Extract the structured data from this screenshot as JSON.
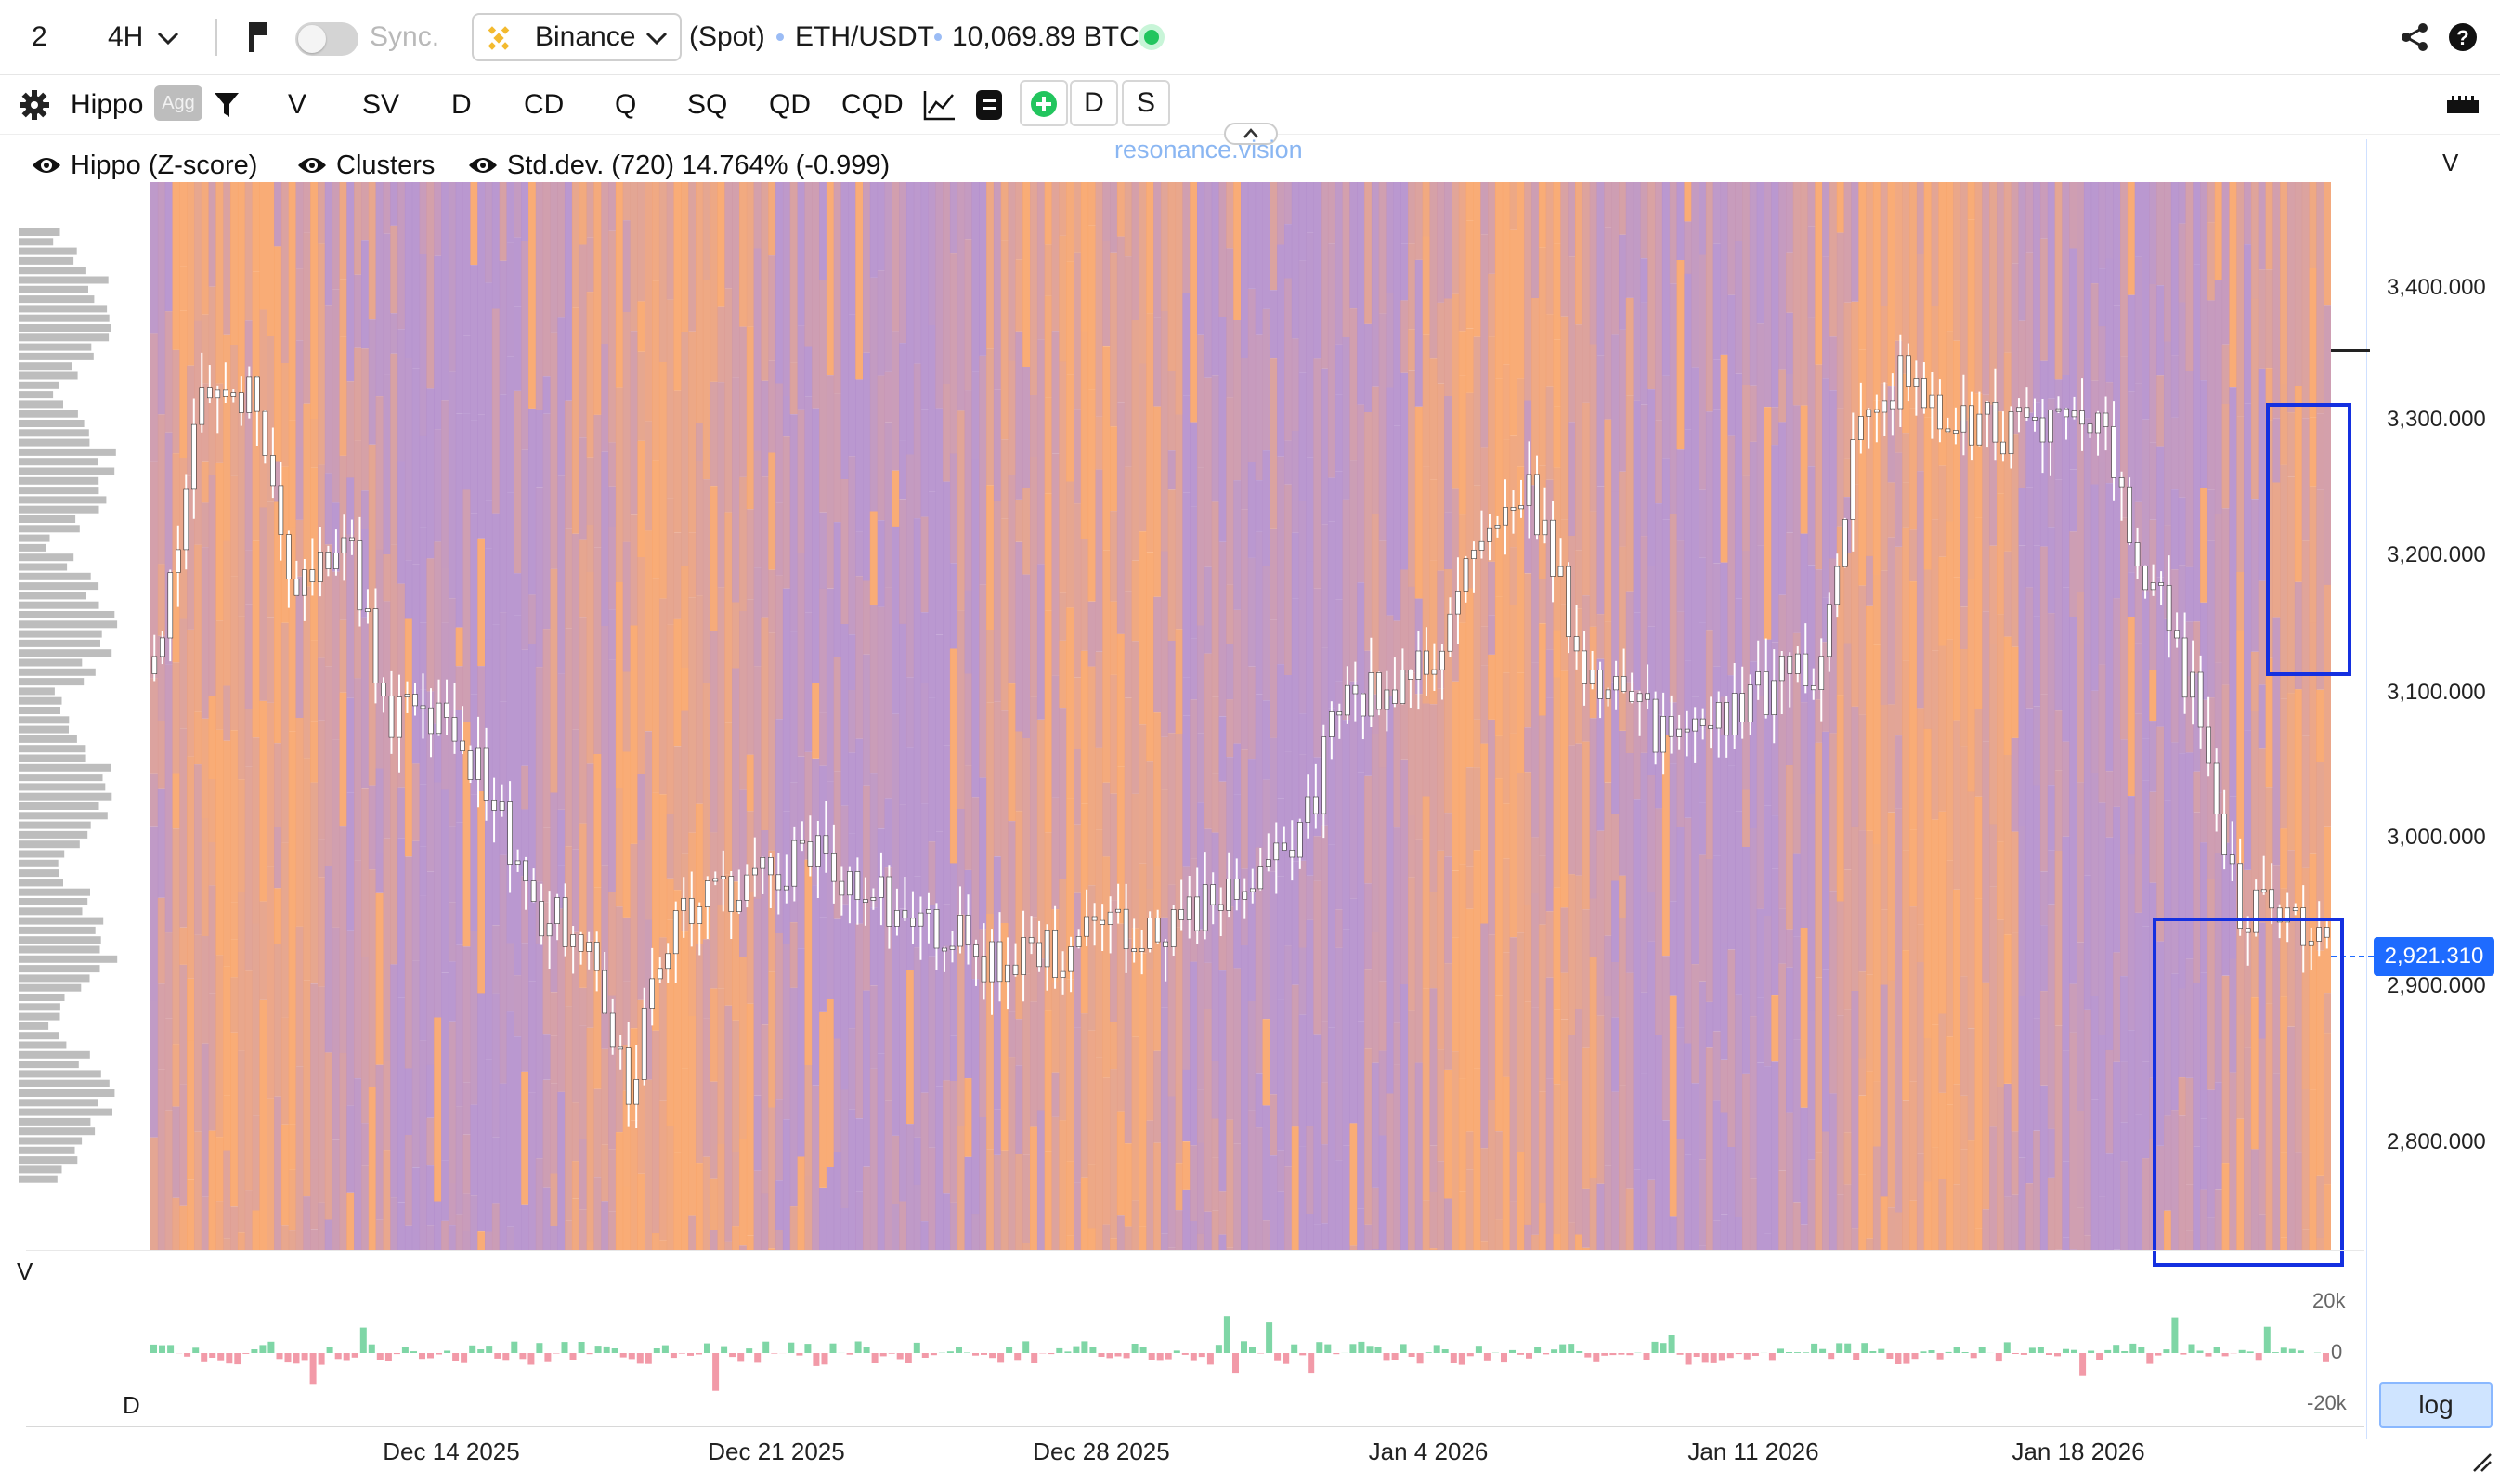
{
  "topbar": {
    "layout_count": "2",
    "interval": "4H",
    "sync_label": "Sync.",
    "exchange": "Binance",
    "market_type": "(Spot)",
    "symbol": "ETH/USDT",
    "volume_value": "10,069.89 BTC",
    "status_color": "#22c55e"
  },
  "toolbar": {
    "indicator": "Hippo",
    "agg_badge": "Agg",
    "items": [
      "V",
      "SV",
      "D",
      "CD",
      "Q",
      "SQ",
      "QD",
      "CQD"
    ],
    "btn_d": "D",
    "btn_s": "S"
  },
  "legend": {
    "item1": "Hippo (Z-score)",
    "item2": "Clusters",
    "item3": "Std.dev. (720) 14.764% (-0.999)"
  },
  "watermark": "resonance.vision",
  "panes": {
    "price_axis_label": "V",
    "volume_label": "V",
    "delta_label": "D",
    "log_button": "log"
  },
  "price_axis": {
    "ticks": [
      "3,400.000",
      "3,300.000",
      "3,200.000",
      "3,100.000",
      "3,000.000",
      "2,900.000",
      "2,800.000"
    ],
    "current_price": "2,921.310"
  },
  "volume_axis": {
    "ticks": [
      "20k",
      "0",
      "-20k"
    ]
  },
  "time_axis": {
    "ticks": [
      "Dec 14 2025",
      "Dec 21 2025",
      "Dec 28 2025",
      "Jan 4 2026",
      "Jan 11 2026",
      "Jan 18 2026"
    ]
  },
  "chart_data": {
    "type": "heatmap",
    "symbol": "ETH/USDT",
    "interval": "4H",
    "y_range": [
      2720,
      3480
    ],
    "current_price": 2921.31,
    "price_path": [
      {
        "t": "Dec 8 2025",
        "p": 3130
      },
      {
        "t": "Dec 9 2025",
        "p": 3320
      },
      {
        "t": "Dec 10 2025",
        "p": 3330
      },
      {
        "t": "Dec 11 2025",
        "p": 3180
      },
      {
        "t": "Dec 12 2025",
        "p": 3230
      },
      {
        "t": "Dec 13 2025",
        "p": 3100
      },
      {
        "t": "Dec 14 2025",
        "p": 3100
      },
      {
        "t": "Dec 15 2025",
        "p": 3050
      },
      {
        "t": "Dec 16 2025",
        "p": 2960
      },
      {
        "t": "Dec 17 2025",
        "p": 2950
      },
      {
        "t": "Dec 18 2025",
        "p": 2830
      },
      {
        "t": "Dec 19 2025",
        "p": 2960
      },
      {
        "t": "Dec 20 2025",
        "p": 2980
      },
      {
        "t": "Dec 21 2025",
        "p": 2980
      },
      {
        "t": "Dec 22 2025",
        "p": 3010
      },
      {
        "t": "Dec 23 2025",
        "p": 2970
      },
      {
        "t": "Dec 24 2025",
        "p": 2960
      },
      {
        "t": "Dec 25 2025",
        "p": 2940
      },
      {
        "t": "Dec 26 2025",
        "p": 2920
      },
      {
        "t": "Dec 27 2025",
        "p": 2930
      },
      {
        "t": "Dec 28 2025",
        "p": 2950
      },
      {
        "t": "Dec 29 2025",
        "p": 2940
      },
      {
        "t": "Dec 30 2025",
        "p": 2960
      },
      {
        "t": "Dec 31 2025",
        "p": 2980
      },
      {
        "t": "Jan 1 2026",
        "p": 3000
      },
      {
        "t": "Jan 2 2026",
        "p": 3100
      },
      {
        "t": "Jan 3 2026",
        "p": 3120
      },
      {
        "t": "Jan 4 2026",
        "p": 3140
      },
      {
        "t": "Jan 5 2026",
        "p": 3240
      },
      {
        "t": "Jan 6 2026",
        "p": 3260
      },
      {
        "t": "Jan 7 2026",
        "p": 3150
      },
      {
        "t": "Jan 8 2026",
        "p": 3100
      },
      {
        "t": "Jan 9 2026",
        "p": 3090
      },
      {
        "t": "Jan 10 2026",
        "p": 3100
      },
      {
        "t": "Jan 11 2026",
        "p": 3120
      },
      {
        "t": "Jan 12 2026",
        "p": 3130
      },
      {
        "t": "Jan 13 2026",
        "p": 3320
      },
      {
        "t": "Jan 14 2026",
        "p": 3340
      },
      {
        "t": "Jan 15 2026",
        "p": 3310
      },
      {
        "t": "Jan 16 2026",
        "p": 3300
      },
      {
        "t": "Jan 17 2026",
        "p": 3300
      },
      {
        "t": "Jan 18 2026",
        "p": 3310
      },
      {
        "t": "Jan 19 2026",
        "p": 3200
      },
      {
        "t": "Jan 20 2026",
        "p": 3120
      },
      {
        "t": "Jan 21 2026",
        "p": 2960
      },
      {
        "t": "Jan 22 2026",
        "p": 2960
      },
      {
        "t": "Jan 23 2026",
        "p": 2921
      }
    ],
    "volume_delta_range": [
      -20000,
      20000
    ],
    "colors": {
      "heat_low": "#b48fcc",
      "heat_high": "#f8a56a",
      "candles": "#ffffff",
      "delta_positive": "#7fd6a6",
      "delta_negative": "#f29aa8",
      "highlight_box": "#1430e0",
      "price_tag": "#1e6bff"
    }
  }
}
